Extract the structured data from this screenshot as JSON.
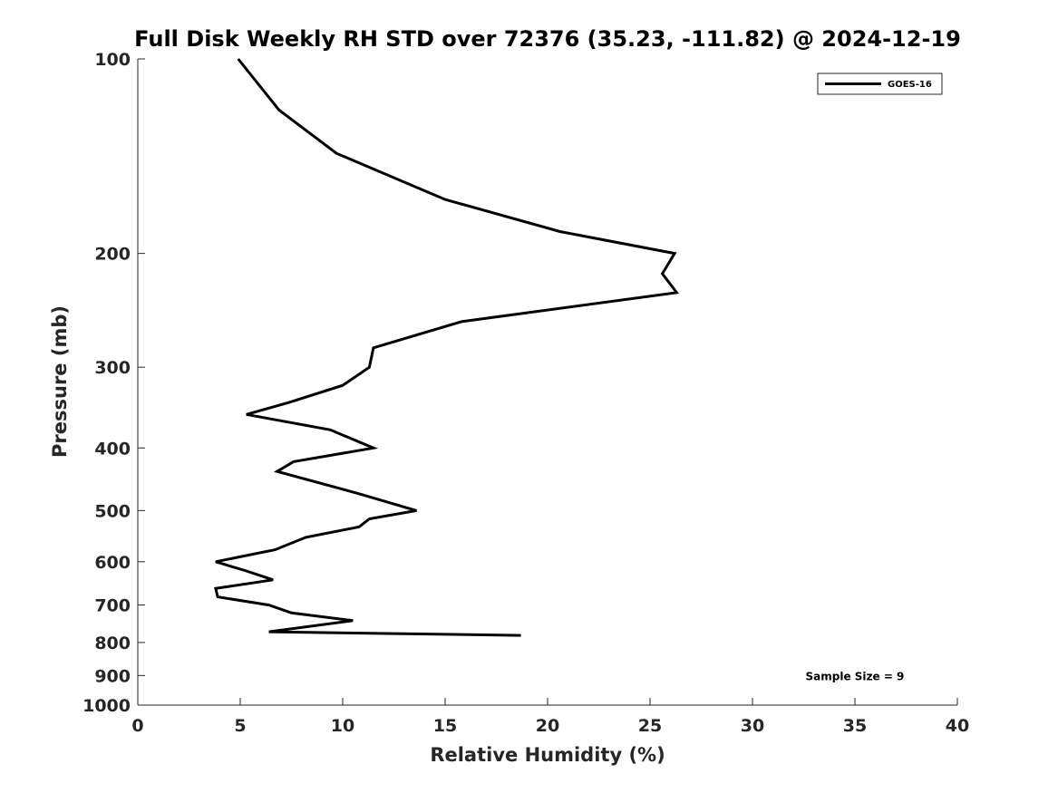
{
  "chart_data": {
    "type": "line",
    "title": "Full Disk Weekly RH STD over 72376 (35.23, -111.82) @ 2024-12-19",
    "xlabel": "Relative Humidity (%)",
    "ylabel": "Pressure (mb)",
    "xlim": [
      0,
      40
    ],
    "ylim": [
      1000,
      100
    ],
    "yscale": "log",
    "x_ticks": [
      0,
      5,
      10,
      15,
      20,
      25,
      30,
      35,
      40
    ],
    "y_ticks": [
      100,
      200,
      300,
      400,
      500,
      600,
      700,
      800,
      900,
      1000
    ],
    "grid": false,
    "legend_position": "top-right",
    "series": [
      {
        "name": "GOES-16",
        "color": "#000000",
        "points": [
          {
            "x": 4.9,
            "y": 100
          },
          {
            "x": 6.9,
            "y": 120
          },
          {
            "x": 9.7,
            "y": 140
          },
          {
            "x": 15.0,
            "y": 165
          },
          {
            "x": 20.6,
            "y": 185
          },
          {
            "x": 26.2,
            "y": 200
          },
          {
            "x": 25.6,
            "y": 215
          },
          {
            "x": 26.3,
            "y": 230
          },
          {
            "x": 15.8,
            "y": 255
          },
          {
            "x": 11.5,
            "y": 280
          },
          {
            "x": 11.3,
            "y": 300
          },
          {
            "x": 10.0,
            "y": 320
          },
          {
            "x": 7.4,
            "y": 340
          },
          {
            "x": 5.3,
            "y": 355
          },
          {
            "x": 9.4,
            "y": 375
          },
          {
            "x": 11.5,
            "y": 400
          },
          {
            "x": 7.6,
            "y": 420
          },
          {
            "x": 6.8,
            "y": 435
          },
          {
            "x": 10.7,
            "y": 470
          },
          {
            "x": 13.6,
            "y": 500
          },
          {
            "x": 11.3,
            "y": 515
          },
          {
            "x": 10.8,
            "y": 530
          },
          {
            "x": 8.2,
            "y": 550
          },
          {
            "x": 6.7,
            "y": 575
          },
          {
            "x": 3.8,
            "y": 600
          },
          {
            "x": 5.3,
            "y": 620
          },
          {
            "x": 6.6,
            "y": 640
          },
          {
            "x": 3.8,
            "y": 660
          },
          {
            "x": 3.9,
            "y": 680
          },
          {
            "x": 6.4,
            "y": 700
          },
          {
            "x": 7.5,
            "y": 720
          },
          {
            "x": 10.5,
            "y": 740
          },
          {
            "x": 6.4,
            "y": 770
          },
          {
            "x": 18.7,
            "y": 780
          }
        ]
      }
    ],
    "annotations": [
      {
        "text": "Sample Size = 9",
        "x": 32.5,
        "y": 900
      }
    ]
  }
}
